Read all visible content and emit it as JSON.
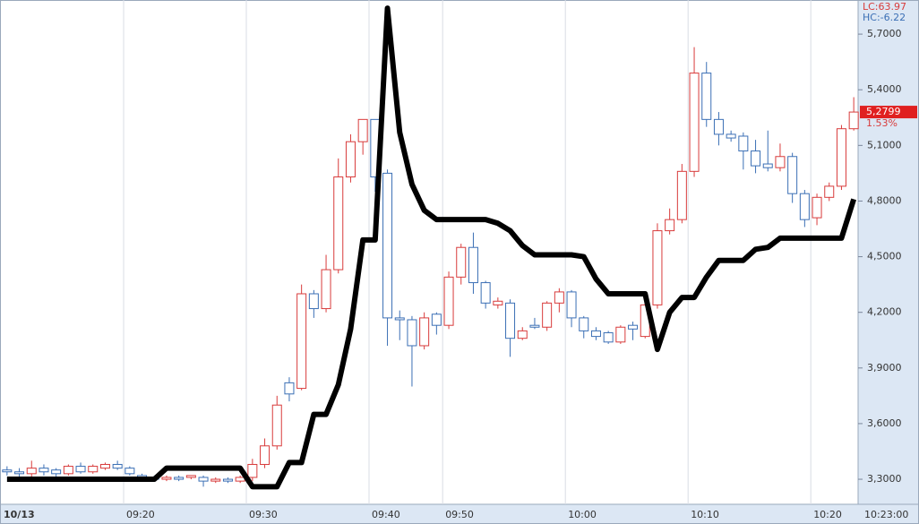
{
  "chart_data": {
    "type": "candlestick",
    "categories": [
      "10/13",
      null,
      null,
      null,
      null,
      null,
      null,
      null,
      null,
      null,
      "09:20",
      null,
      null,
      null,
      null,
      null,
      null,
      null,
      null,
      null,
      "09:30",
      null,
      null,
      null,
      null,
      null,
      null,
      null,
      null,
      null,
      "09:40",
      null,
      null,
      null,
      null,
      null,
      "09:50",
      null,
      null,
      null,
      null,
      null,
      null,
      null,
      null,
      null,
      "10:00",
      null,
      null,
      null,
      null,
      null,
      null,
      null,
      null,
      null,
      "10:10",
      null,
      null,
      null,
      null,
      null,
      null,
      null,
      null,
      null,
      "10:20",
      null,
      null,
      null
    ],
    "open": [
      3.35,
      3.34,
      3.33,
      3.36,
      3.35,
      3.33,
      3.37,
      3.34,
      3.36,
      3.38,
      3.36,
      3.32,
      3.31,
      3.3,
      3.31,
      3.31,
      3.31,
      3.29,
      3.3,
      3.29,
      3.31,
      3.38,
      3.48,
      3.82,
      3.79,
      4.3,
      4.22,
      4.43,
      4.93,
      5.12,
      5.24,
      4.95,
      4.17,
      4.16,
      4.02,
      4.19,
      4.13,
      4.39,
      4.55,
      4.36,
      4.24,
      4.25,
      4.06,
      4.13,
      4.12,
      4.25,
      4.31,
      4.17,
      4.1,
      4.09,
      4.04,
      4.13,
      4.07,
      4.24,
      4.64,
      4.7,
      4.96,
      5.49,
      5.24,
      5.16,
      5.15,
      5.07,
      5.0,
      4.98,
      5.04,
      4.84,
      4.71,
      4.82,
      4.88,
      5.19
    ],
    "high": [
      3.37,
      3.36,
      3.4,
      3.38,
      3.36,
      3.38,
      3.39,
      3.38,
      3.39,
      3.4,
      3.37,
      3.33,
      3.32,
      3.32,
      3.32,
      3.32,
      3.32,
      3.31,
      3.31,
      3.32,
      3.41,
      3.52,
      3.75,
      3.85,
      4.35,
      4.32,
      4.51,
      5.03,
      5.16,
      5.24,
      5.24,
      4.97,
      4.21,
      4.18,
      4.2,
      4.2,
      4.42,
      4.57,
      4.63,
      4.37,
      4.28,
      4.27,
      4.12,
      4.17,
      4.26,
      4.33,
      4.32,
      4.18,
      4.12,
      4.1,
      4.13,
      4.15,
      4.26,
      4.68,
      4.76,
      5.0,
      5.63,
      5.55,
      5.28,
      5.18,
      5.17,
      5.13,
      5.18,
      5.11,
      5.06,
      4.86,
      4.84,
      4.9,
      5.21,
      5.36
    ],
    "low": [
      3.32,
      3.31,
      3.31,
      3.32,
      3.3,
      3.32,
      3.33,
      3.33,
      3.35,
      3.35,
      3.32,
      3.3,
      3.29,
      3.29,
      3.29,
      3.3,
      3.26,
      3.28,
      3.28,
      3.28,
      3.29,
      3.36,
      3.46,
      3.72,
      3.78,
      4.17,
      4.2,
      4.41,
      4.9,
      5.05,
      4.85,
      4.02,
      4.05,
      3.8,
      4.0,
      4.08,
      4.11,
      4.35,
      4.3,
      4.22,
      4.22,
      3.96,
      4.05,
      4.11,
      4.1,
      4.2,
      4.12,
      4.06,
      4.05,
      4.03,
      4.03,
      4.05,
      4.06,
      4.22,
      4.62,
      4.68,
      4.93,
      5.2,
      5.1,
      5.12,
      4.97,
      4.95,
      4.96,
      4.96,
      4.79,
      4.66,
      4.67,
      4.8,
      4.86,
      5.18
    ],
    "close": [
      3.34,
      3.33,
      3.36,
      3.34,
      3.33,
      3.37,
      3.34,
      3.37,
      3.38,
      3.36,
      3.33,
      3.31,
      3.3,
      3.31,
      3.3,
      3.32,
      3.29,
      3.3,
      3.29,
      3.31,
      3.38,
      3.48,
      3.7,
      3.76,
      4.3,
      4.22,
      4.43,
      4.93,
      5.12,
      5.24,
      4.93,
      4.17,
      4.16,
      4.02,
      4.17,
      4.13,
      4.39,
      4.55,
      4.36,
      4.25,
      4.26,
      4.06,
      4.1,
      4.12,
      4.25,
      4.31,
      4.17,
      4.1,
      4.07,
      4.04,
      4.12,
      4.11,
      4.24,
      4.64,
      4.7,
      4.96,
      5.49,
      5.24,
      5.16,
      5.14,
      5.07,
      4.99,
      4.98,
      5.04,
      4.84,
      4.7,
      4.82,
      4.88,
      5.19,
      5.2799
    ],
    "up_color": "#d83b3b",
    "down_color": "#3b6fb5",
    "line": {
      "color": "#000000",
      "values": [
        3.3,
        3.3,
        3.3,
        3.3,
        3.3,
        3.3,
        3.3,
        3.3,
        3.3,
        3.3,
        3.3,
        3.3,
        3.3,
        3.36,
        3.36,
        3.36,
        3.36,
        3.36,
        3.36,
        3.36,
        3.26,
        3.26,
        3.26,
        3.39,
        3.39,
        3.65,
        3.65,
        3.81,
        4.11,
        4.59,
        4.59,
        5.84,
        5.17,
        4.89,
        4.75,
        4.7,
        4.7,
        4.7,
        4.7,
        4.7,
        4.68,
        4.64,
        4.56,
        4.51,
        4.51,
        4.51,
        4.51,
        4.5,
        4.38,
        4.3,
        4.3,
        4.3,
        4.3,
        4.0,
        4.2,
        4.28,
        4.28,
        4.39,
        4.48,
        4.48,
        4.48,
        4.54,
        4.55,
        4.6,
        4.6,
        4.6,
        4.6,
        4.6,
        4.6,
        4.81
      ]
    },
    "ylim": [
      3.165,
      5.884
    ],
    "yticks": [
      {
        "value": 3.3,
        "label": "3,3000"
      },
      {
        "value": 3.6,
        "label": "3,6000"
      },
      {
        "value": 3.9,
        "label": "3,9000"
      },
      {
        "value": 4.2,
        "label": "4,2000"
      },
      {
        "value": 4.5,
        "label": "4,5000"
      },
      {
        "value": 4.8,
        "label": "4,8000"
      },
      {
        "value": 5.1,
        "label": "5,1000"
      },
      {
        "value": 5.4,
        "label": "5,4000"
      },
      {
        "value": 5.7,
        "label": "5,7000"
      }
    ],
    "last_price": {
      "value": 5.2799,
      "label": "5,2799"
    },
    "change": {
      "value": 1.53,
      "label": "1.53%"
    },
    "lc_label": "LC:63.97",
    "hc_label": "HC:-6.22",
    "end_time": "10:23:00"
  }
}
